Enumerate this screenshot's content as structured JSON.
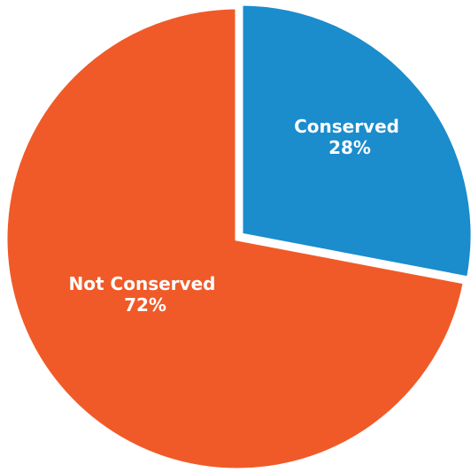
{
  "chart_data": {
    "type": "pie",
    "start_angle_deg": 0,
    "direction": "clockwise",
    "legend": "none",
    "slices": [
      {
        "label": "Conserved",
        "value": 28,
        "value_label": "28%",
        "color": "#1b8ccc"
      },
      {
        "label": "Not Conserved",
        "value": 72,
        "value_label": "72%",
        "color": "#f05a28"
      }
    ]
  }
}
